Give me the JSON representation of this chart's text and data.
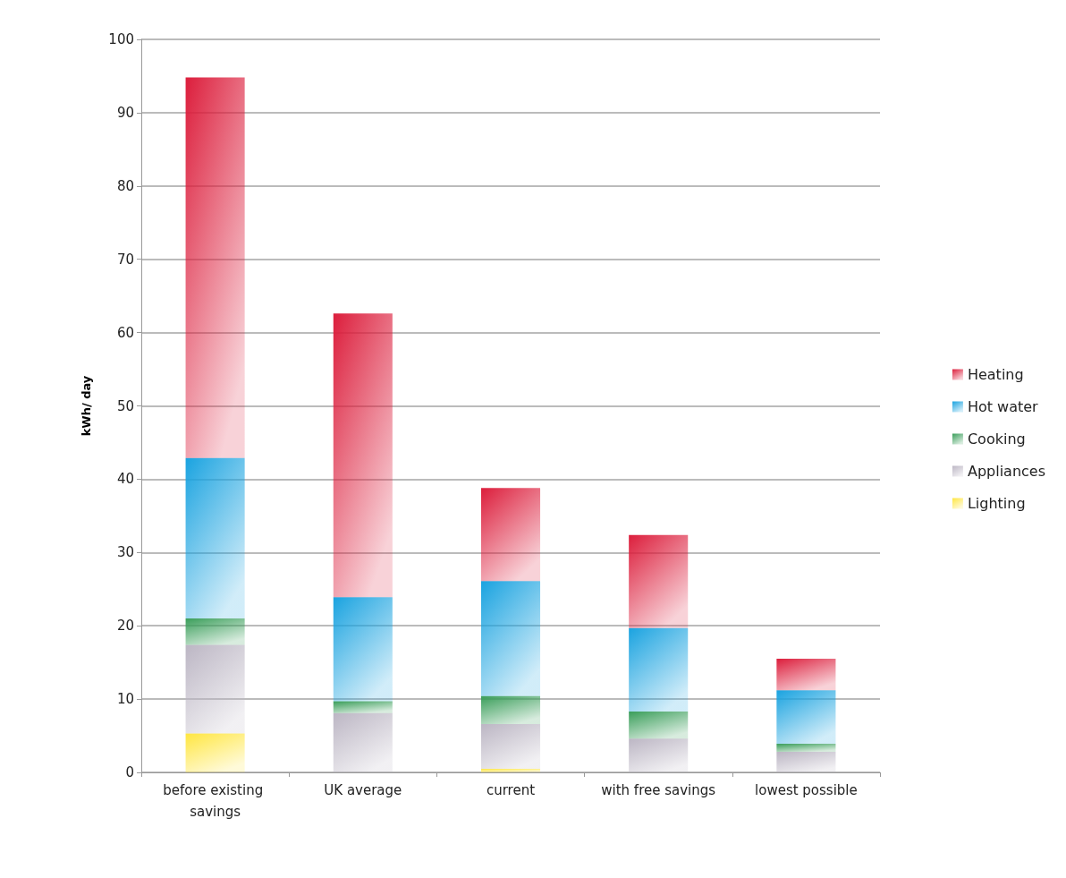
{
  "chart_data": {
    "type": "bar",
    "stacked": true,
    "ylabel": "kWh/ day",
    "categories": [
      "before existing savings",
      "UK average",
      "current",
      "with free savings",
      "lowest possible"
    ],
    "series": [
      {
        "name": "Lighting",
        "color": "#ffe640",
        "values": [
          5.3,
          0,
          0.5,
          0,
          0
        ]
      },
      {
        "name": "Appliances",
        "color": "#bcb6c4",
        "values": [
          12.1,
          8.1,
          6.1,
          4.6,
          2.8
        ]
      },
      {
        "name": "Cooking",
        "color": "#3a9e5a",
        "values": [
          3.6,
          1.6,
          3.8,
          3.7,
          1.1
        ]
      },
      {
        "name": "Hot water",
        "color": "#1aa3e0",
        "values": [
          21.9,
          14.2,
          15.7,
          11.4,
          7.3
        ]
      },
      {
        "name": "Heating",
        "color": "#dc1e3c",
        "values": [
          51.9,
          38.7,
          12.7,
          12.7,
          4.3
        ]
      }
    ],
    "ylim": [
      0,
      100
    ],
    "yticks": [
      0,
      10,
      20,
      30,
      40,
      50,
      60,
      70,
      80,
      90,
      100
    ],
    "grid": "y",
    "legend": "right"
  }
}
